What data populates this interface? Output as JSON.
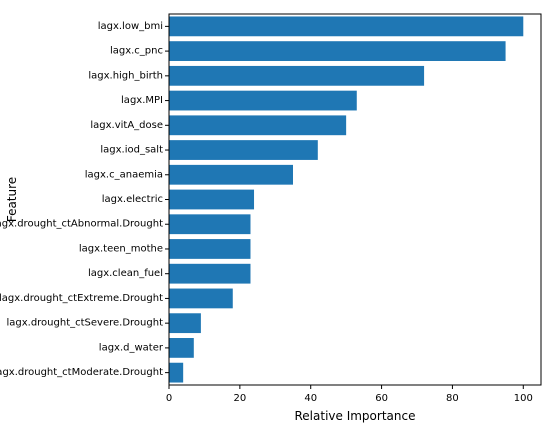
{
  "chart_data": {
    "type": "bar",
    "orientation": "horizontal",
    "xlabel": "Relative Importance",
    "ylabel": "Feature",
    "xlim": [
      0,
      105
    ],
    "xticks": [
      0,
      20,
      40,
      60,
      80,
      100
    ],
    "bar_color": "#1f77b4",
    "grid": false,
    "categories": [
      "lagx.low_bmi",
      "lagx.c_pnc",
      "lagx.high_birth",
      "lagx.MPI",
      "lagx.vitA_dose",
      "lagx.iod_salt",
      "lagx.c_anaemia",
      "lagx.electric",
      "lagx.drought_ctAbnormal.Drought",
      "lagx.teen_mothe",
      "lagx.clean_fuel",
      "lagx.drought_ctExtreme.Drought",
      "lagx.drought_ctSevere.Drought",
      "lagx.d_water",
      "lagx.drought_ctModerate.Drought"
    ],
    "values": [
      100,
      95,
      72,
      53,
      50,
      42,
      35,
      24,
      23,
      23,
      23,
      18,
      9,
      7,
      4
    ]
  }
}
